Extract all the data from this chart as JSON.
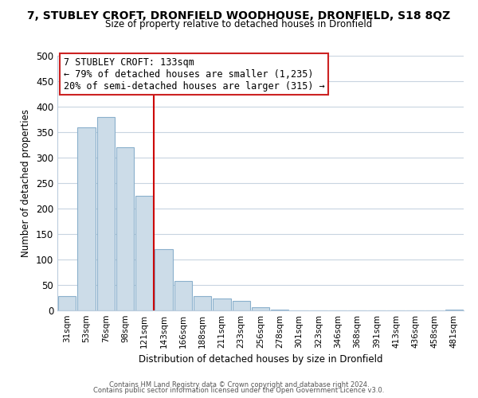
{
  "title_line1": "7, STUBLEY CROFT, DRONFIELD WOODHOUSE, DRONFIELD, S18 8QZ",
  "title_line2": "Size of property relative to detached houses in Dronfield",
  "xlabel": "Distribution of detached houses by size in Dronfield",
  "ylabel": "Number of detached properties",
  "bar_labels": [
    "31sqm",
    "53sqm",
    "76sqm",
    "98sqm",
    "121sqm",
    "143sqm",
    "166sqm",
    "188sqm",
    "211sqm",
    "233sqm",
    "256sqm",
    "278sqm",
    "301sqm",
    "323sqm",
    "346sqm",
    "368sqm",
    "391sqm",
    "413sqm",
    "436sqm",
    "458sqm",
    "481sqm"
  ],
  "bar_heights": [
    28,
    360,
    380,
    320,
    225,
    120,
    58,
    28,
    24,
    18,
    6,
    1,
    0,
    0,
    0,
    0,
    0,
    0,
    0,
    0,
    2
  ],
  "bar_color": "#ccdce8",
  "bar_edge_color": "#8ab0cc",
  "vline_color": "#cc0000",
  "annotation_title": "7 STUBLEY CROFT: 133sqm",
  "annotation_line1": "← 79% of detached houses are smaller (1,235)",
  "annotation_line2": "20% of semi-detached houses are larger (315) →",
  "annotation_box_color": "#ffffff",
  "annotation_box_edge": "#cc2222",
  "ylim": [
    0,
    500
  ],
  "yticks": [
    0,
    50,
    100,
    150,
    200,
    250,
    300,
    350,
    400,
    450,
    500
  ],
  "footer_line1": "Contains HM Land Registry data © Crown copyright and database right 2024.",
  "footer_line2": "Contains public sector information licensed under the Open Government Licence v3.0.",
  "background_color": "#ffffff",
  "grid_color": "#c8d4e0"
}
